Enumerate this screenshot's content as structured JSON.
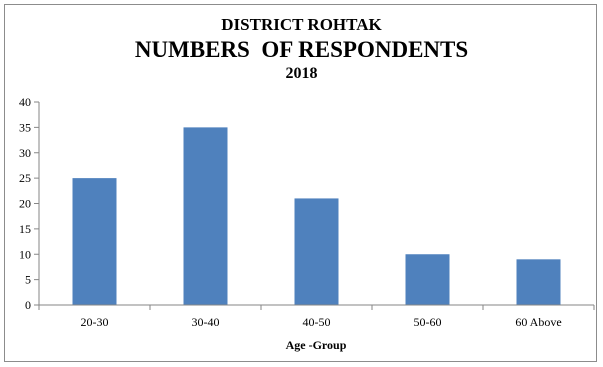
{
  "chart_data": {
    "type": "bar",
    "title_lines": [
      "DISTRICT ROHTAK",
      "NUMBERS  OF RESPONDENTS",
      "2018"
    ],
    "categories": [
      "20-30",
      "30-40",
      "40-50",
      "50-60",
      "60 Above"
    ],
    "values": [
      25,
      35,
      21,
      10,
      9
    ],
    "xlabel": "Age -Group",
    "ylabel": "",
    "ylim": [
      0,
      40
    ],
    "yticks": [
      0,
      5,
      10,
      15,
      20,
      25,
      30,
      35,
      40
    ],
    "grid": false,
    "legend": "none",
    "bar_color": "#4f81bd"
  }
}
